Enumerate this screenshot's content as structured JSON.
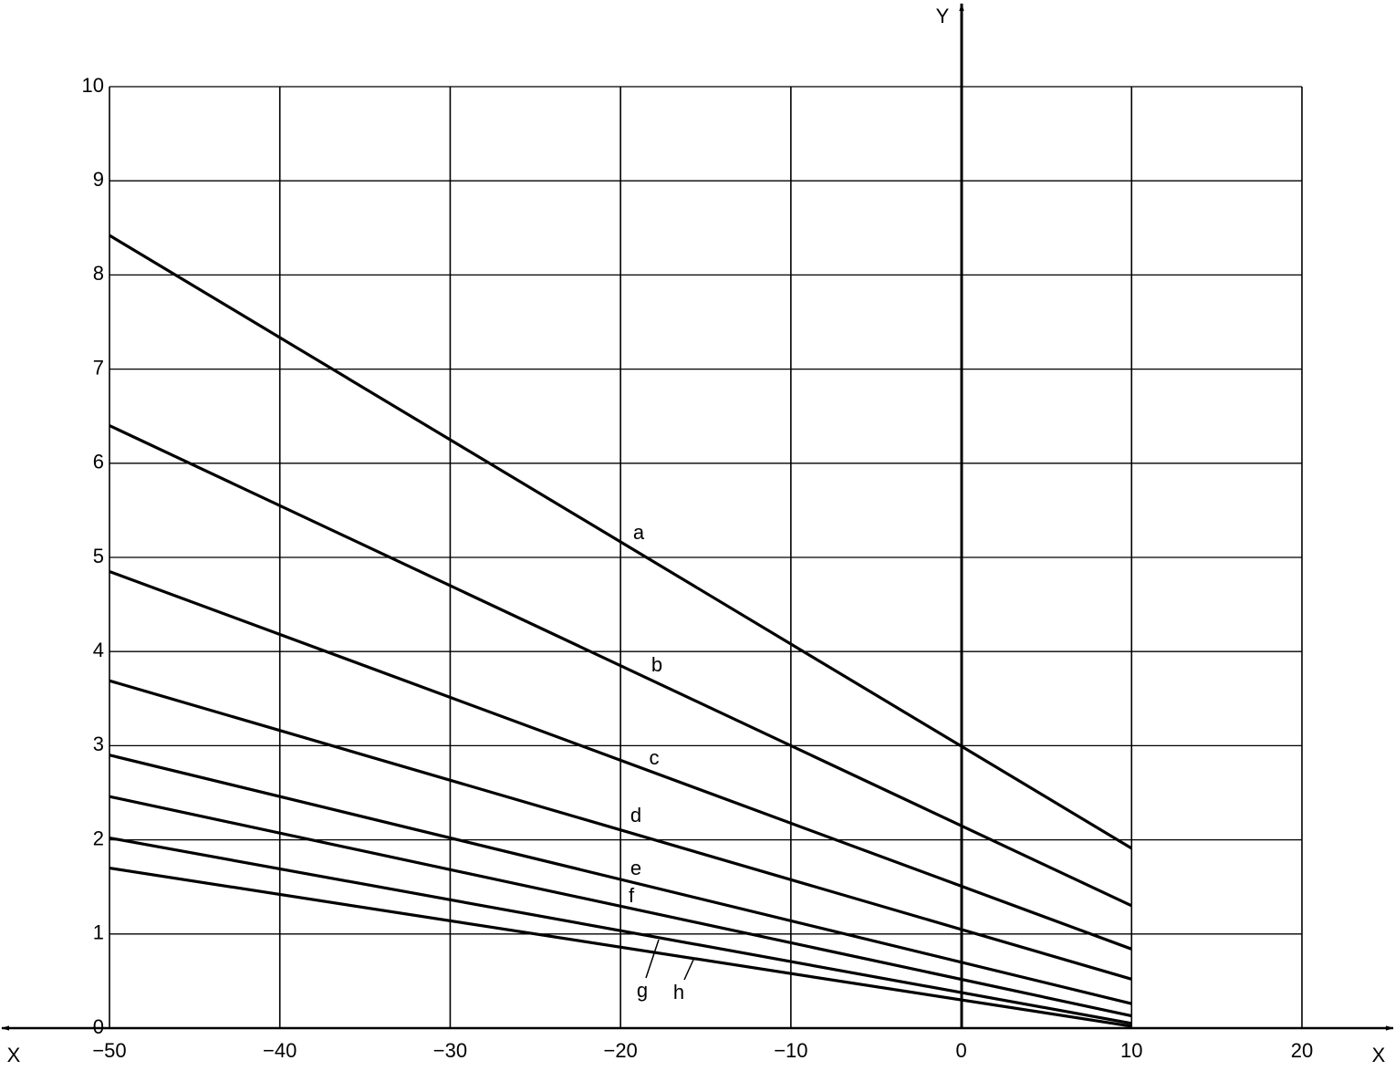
{
  "chart_data": {
    "type": "line",
    "x_label": "X",
    "y_label": "Y",
    "x": [
      -50,
      10
    ],
    "series": [
      {
        "name": "a",
        "color": "#000000",
        "values": [
          8.42,
          1.91
        ]
      },
      {
        "name": "b",
        "color": "#000000",
        "values": [
          6.4,
          1.3
        ]
      },
      {
        "name": "c",
        "color": "#000000",
        "values": [
          4.85,
          0.84
        ]
      },
      {
        "name": "d",
        "color": "#000000",
        "values": [
          3.69,
          0.52
        ]
      },
      {
        "name": "e",
        "color": "#000000",
        "values": [
          2.9,
          0.26
        ]
      },
      {
        "name": "f",
        "color": "#000000",
        "values": [
          2.46,
          0.13
        ]
      },
      {
        "name": "g",
        "color": "#000000",
        "values": [
          2.02,
          0.05
        ]
      },
      {
        "name": "h",
        "color": "#000000",
        "values": [
          1.7,
          0.02
        ]
      }
    ],
    "xlim": [
      -50,
      20
    ],
    "xticks": [
      {
        "value": -50,
        "label": "−50"
      },
      {
        "value": -40,
        "label": "−40"
      },
      {
        "value": -30,
        "label": "−30"
      },
      {
        "value": -20,
        "label": "−20"
      },
      {
        "value": -10,
        "label": "−10"
      },
      0,
      10,
      20
    ],
    "ylim": [
      0,
      10
    ],
    "yticks": [
      0,
      1,
      2,
      3,
      4,
      5,
      6,
      7,
      8,
      9,
      10
    ],
    "grid": true
  }
}
